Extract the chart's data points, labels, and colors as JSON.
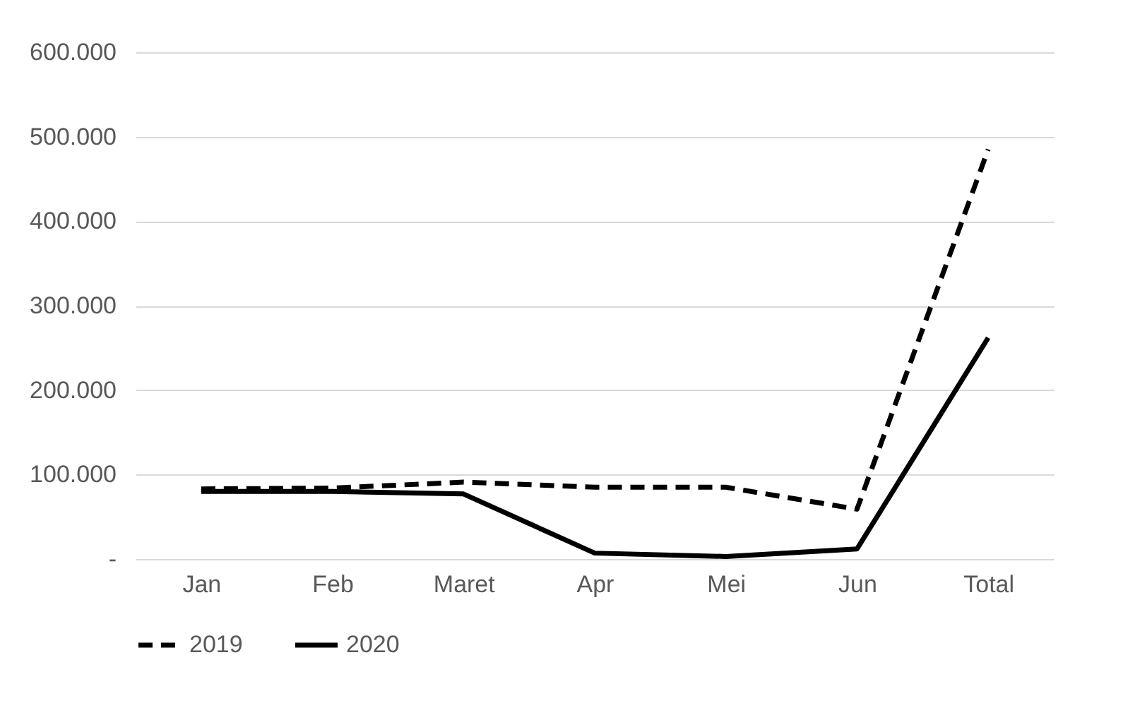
{
  "chart_data": {
    "type": "line",
    "categories": [
      "Jan",
      "Feb",
      "Maret",
      "Apr",
      "Mei",
      "Jun",
      "Total"
    ],
    "series": [
      {
        "name": "2019",
        "color": "#000000",
        "line_style": "dashed",
        "values": [
          83000,
          84000,
          91000,
          85000,
          85000,
          59000,
          485000
        ]
      },
      {
        "name": "2020",
        "color": "#000000",
        "line_style": "solid",
        "values": [
          80000,
          80000,
          77000,
          7000,
          3000,
          12000,
          262000
        ]
      }
    ],
    "ylim": [
      0,
      600000
    ],
    "yticks": [
      {
        "value": 0,
        "label": "-"
      },
      {
        "value": 100000,
        "label": "100.000"
      },
      {
        "value": 200000,
        "label": "200.000"
      },
      {
        "value": 300000,
        "label": "300.000"
      },
      {
        "value": 400000,
        "label": "400.000"
      },
      {
        "value": 500000,
        "label": "500.000"
      },
      {
        "value": 600000,
        "label": "600.000"
      }
    ],
    "grid": "y",
    "legend": "bottom",
    "marker": "none"
  }
}
